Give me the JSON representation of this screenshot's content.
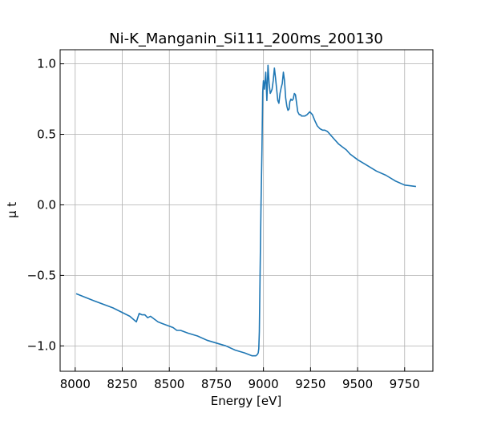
{
  "chart_data": {
    "type": "line",
    "title": "Ni-K_Manganin_Si111_200ms_200130",
    "xlabel": "Energy [eV]",
    "ylabel": "μ t",
    "xlim": [
      7920,
      9900
    ],
    "ylim": [
      -1.18,
      1.1
    ],
    "grid": true,
    "x_ticks": [
      8000,
      8250,
      8500,
      8750,
      9000,
      9250,
      9500,
      9750
    ],
    "y_ticks": [
      1.0,
      0.5,
      0.0,
      -0.5,
      -1.0
    ],
    "x_tick_labels": [
      "8000",
      "8250",
      "8500",
      "8750",
      "9000",
      "9250",
      "9500",
      "9750"
    ],
    "y_tick_labels": [
      "1.0",
      "0.5",
      "0.0",
      "−0.5",
      "−1.0"
    ],
    "color": "#1f77b4",
    "series": [
      {
        "name": "mu_t",
        "x": [
          8005,
          8100,
          8200,
          8290,
          8325,
          8340,
          8355,
          8370,
          8385,
          8400,
          8420,
          8440,
          8460,
          8480,
          8500,
          8520,
          8540,
          8560,
          8580,
          8600,
          8650,
          8700,
          8750,
          8800,
          8850,
          8900,
          8940,
          8960,
          8968,
          8972,
          8975,
          8978,
          8982,
          8987,
          8992,
          8996,
          9000,
          9005,
          9012,
          9018,
          9024,
          9030,
          9036,
          9040,
          9046,
          9052,
          9058,
          9064,
          9070,
          9076,
          9082,
          9088,
          9094,
          9100,
          9106,
          9112,
          9118,
          9124,
          9130,
          9136,
          9140,
          9146,
          9152,
          9158,
          9164,
          9170,
          9176,
          9182,
          9190,
          9196,
          9202,
          9210,
          9220,
          9232,
          9246,
          9260,
          9272,
          9286,
          9300,
          9314,
          9326,
          9340,
          9360,
          9380,
          9400,
          9420,
          9440,
          9460,
          9500,
          9550,
          9600,
          9650,
          9700,
          9750,
          9810
        ],
        "y": [
          -0.63,
          -0.68,
          -0.73,
          -0.79,
          -0.83,
          -0.77,
          -0.78,
          -0.78,
          -0.8,
          -0.79,
          -0.81,
          -0.83,
          -0.84,
          -0.85,
          -0.86,
          -0.87,
          -0.89,
          -0.89,
          -0.9,
          -0.91,
          -0.93,
          -0.96,
          -0.98,
          -1.0,
          -1.03,
          -1.05,
          -1.07,
          -1.07,
          -1.06,
          -1.05,
          -1.02,
          -0.9,
          -0.5,
          0.0,
          0.4,
          0.8,
          0.88,
          0.82,
          0.94,
          0.74,
          0.99,
          0.86,
          0.79,
          0.8,
          0.82,
          0.88,
          0.97,
          0.9,
          0.82,
          0.74,
          0.72,
          0.79,
          0.83,
          0.86,
          0.94,
          0.88,
          0.76,
          0.7,
          0.67,
          0.68,
          0.73,
          0.75,
          0.74,
          0.75,
          0.79,
          0.78,
          0.72,
          0.66,
          0.64,
          0.64,
          0.63,
          0.63,
          0.63,
          0.64,
          0.66,
          0.64,
          0.6,
          0.56,
          0.54,
          0.53,
          0.53,
          0.52,
          0.49,
          0.46,
          0.43,
          0.41,
          0.39,
          0.36,
          0.32,
          0.28,
          0.24,
          0.21,
          0.17,
          0.14,
          0.13
        ]
      }
    ]
  }
}
